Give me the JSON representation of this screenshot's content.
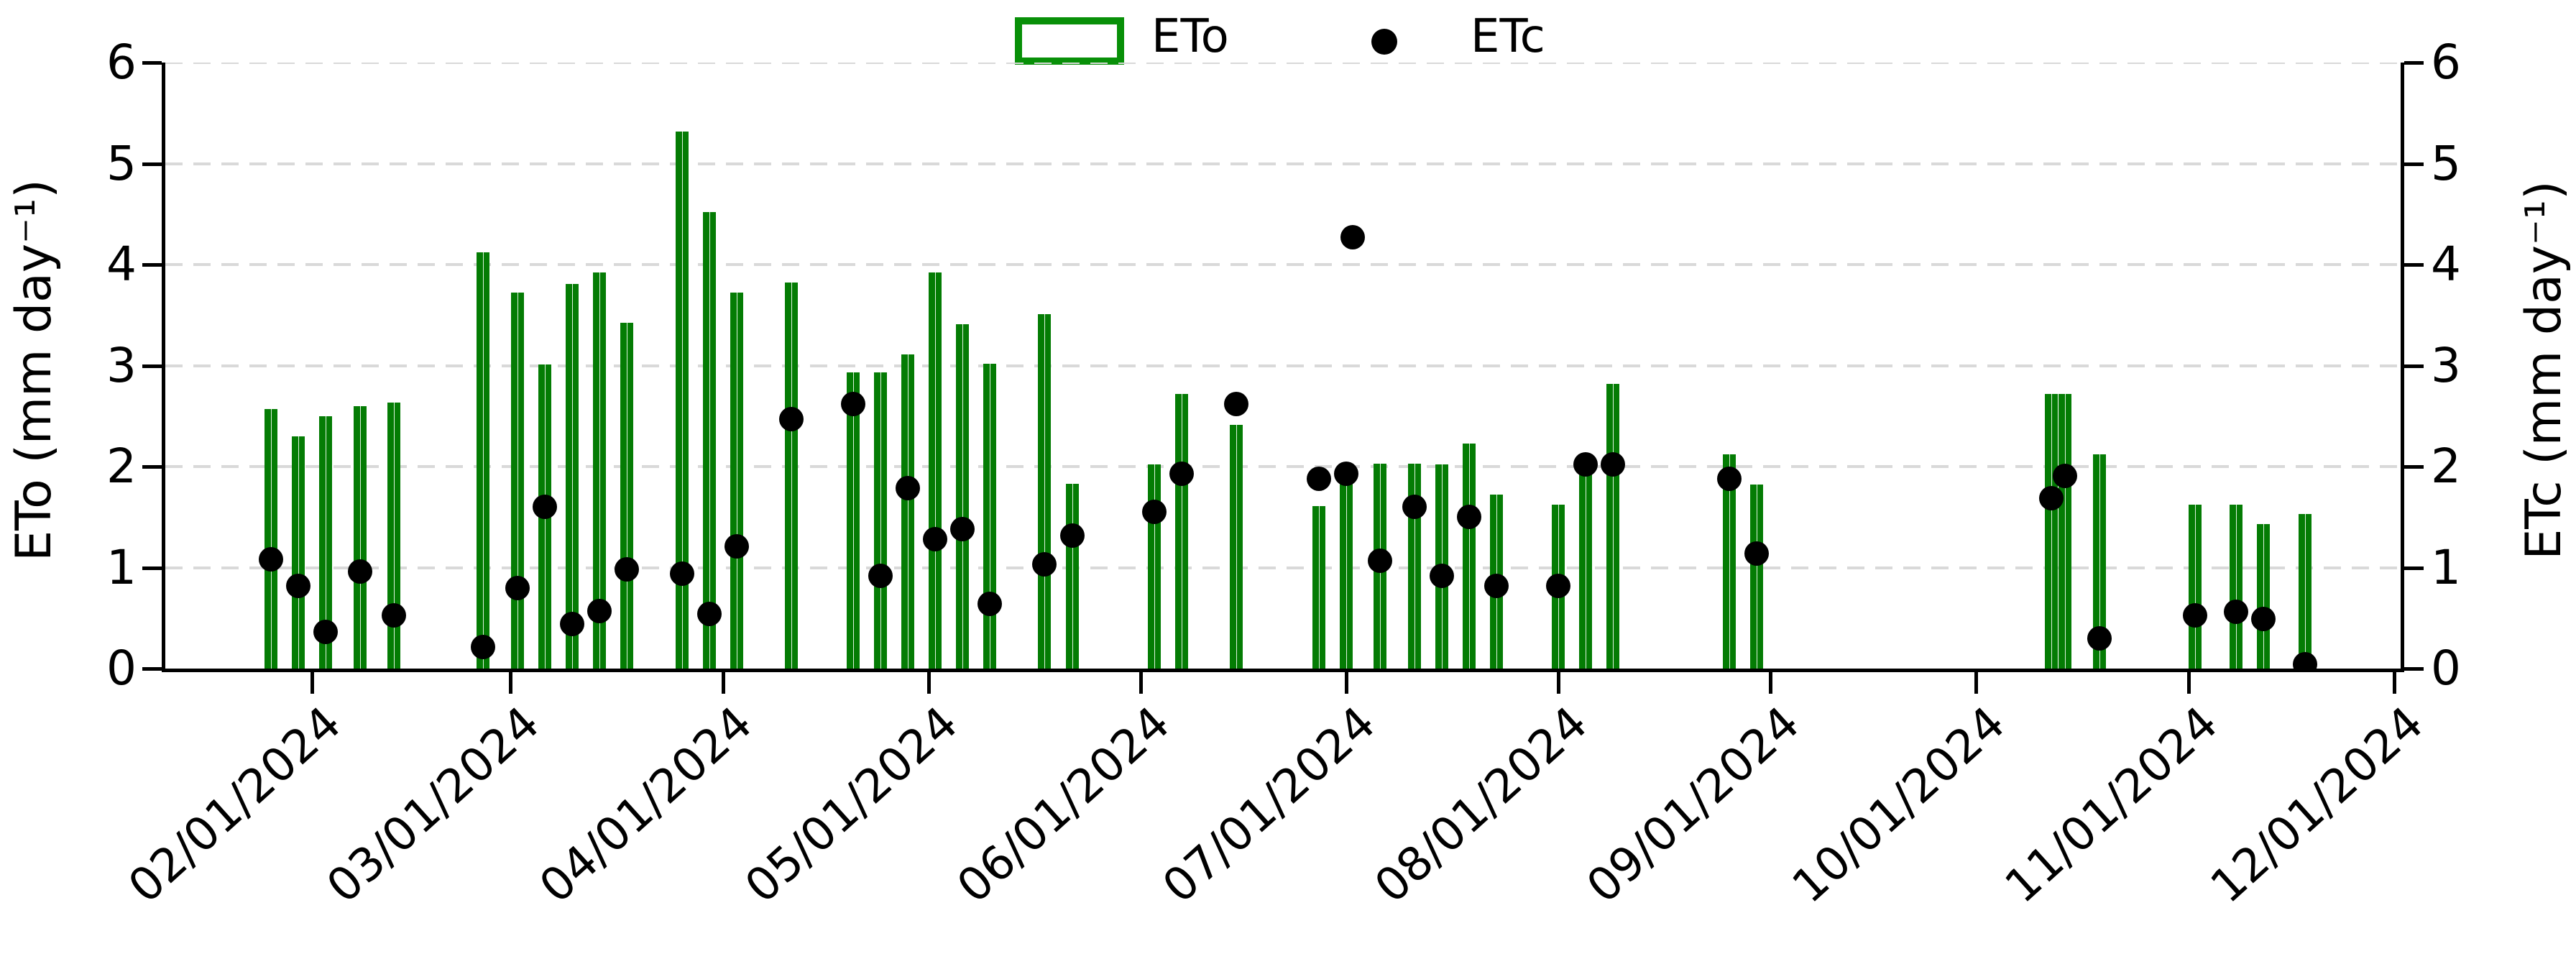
{
  "legend": {
    "eto_label": "ETo",
    "etc_label": "ETc"
  },
  "axes": {
    "left_label": "ETo (mm day⁻¹)",
    "right_label": "ETc (mm day⁻¹)",
    "y_tick_labels": [
      "0",
      "1",
      "2",
      "3",
      "4",
      "5",
      "6"
    ],
    "x_tick_labels": [
      "02/01/2024",
      "03/01/2024",
      "04/01/2024",
      "05/01/2024",
      "06/01/2024",
      "07/01/2024",
      "08/01/2024",
      "09/01/2024",
      "10/01/2024",
      "11/01/2024",
      "12/01/2024"
    ]
  },
  "colors": {
    "bar_green": "#047c04",
    "legend_border_green": "#089008",
    "dot_black": "#000000",
    "grid_gray": "#d9d9d9",
    "axis_black": "#000000"
  },
  "chart_data": {
    "type": "bar",
    "title": "",
    "xlabel": "",
    "grid": "horizontal dashed",
    "legend_position": "top center",
    "x_range": [
      "01/10/2024",
      "12/02/2024"
    ],
    "y_left": {
      "label": "ETo (mm day⁻¹)",
      "ticks": [
        0,
        1,
        2,
        3,
        4,
        5,
        6
      ],
      "range": [
        0,
        6
      ]
    },
    "y_right": {
      "label": "ETc (mm day⁻¹)",
      "ticks": [
        0,
        1,
        2,
        3,
        4,
        5,
        6
      ],
      "range": [
        0,
        6
      ]
    },
    "x_tick_dates": [
      "02/01/2024",
      "03/01/2024",
      "04/01/2024",
      "05/01/2024",
      "06/01/2024",
      "07/01/2024",
      "08/01/2024",
      "09/01/2024",
      "10/01/2024",
      "11/01/2024",
      "12/01/2024"
    ],
    "series": [
      {
        "name": "ETo",
        "type": "bar",
        "color": "#047c04",
        "points": [
          [
            "01/26/2024",
            2.57
          ],
          [
            "01/30/2024",
            2.3
          ],
          [
            "02/03/2024",
            2.5
          ],
          [
            "02/08/2024",
            2.6
          ],
          [
            "02/13/2024",
            2.63
          ],
          [
            "02/26/2024",
            4.12
          ],
          [
            "03/02/2024",
            3.72
          ],
          [
            "03/06/2024",
            3.01
          ],
          [
            "03/10/2024",
            3.81
          ],
          [
            "03/14/2024",
            3.92
          ],
          [
            "03/18/2024",
            3.42
          ],
          [
            "03/26/2024",
            5.32
          ],
          [
            "03/30/2024",
            4.52
          ],
          [
            "04/03/2024",
            3.72
          ],
          [
            "04/11/2024",
            3.82
          ],
          [
            "04/20/2024",
            2.93
          ],
          [
            "04/24/2024",
            2.93
          ],
          [
            "04/28/2024",
            3.11
          ],
          [
            "05/02/2024",
            3.92
          ],
          [
            "05/06/2024",
            3.41
          ],
          [
            "05/10/2024",
            3.02
          ],
          [
            "05/18/2024",
            3.51
          ],
          [
            "05/22/2024",
            1.83
          ],
          [
            "06/03/2024",
            2.02
          ],
          [
            "06/07/2024",
            2.72
          ],
          [
            "06/15/2024",
            2.41
          ],
          [
            "06/27/2024",
            1.61
          ],
          [
            "07/01/2024",
            2.03
          ],
          [
            "07/06/2024",
            2.03
          ],
          [
            "07/11/2024",
            2.03
          ],
          [
            "07/15/2024",
            2.02
          ],
          [
            "07/19/2024",
            2.23
          ],
          [
            "07/23/2024",
            1.72
          ],
          [
            "08/01/2024",
            1.62
          ],
          [
            "08/05/2024",
            2.03
          ],
          [
            "08/09/2024",
            2.82
          ],
          [
            "08/26/2024",
            2.12
          ],
          [
            "08/30/2024",
            1.82
          ],
          [
            "10/12/2024",
            2.72
          ],
          [
            "10/14/2024",
            2.72
          ],
          [
            "10/19/2024",
            2.12
          ],
          [
            "11/02/2024",
            1.62
          ],
          [
            "11/08/2024",
            1.62
          ],
          [
            "11/12/2024",
            1.43
          ],
          [
            "11/18/2024",
            1.53
          ]
        ]
      },
      {
        "name": "ETc",
        "type": "scatter",
        "color": "#000000",
        "points": [
          [
            "01/26/2024",
            1.08
          ],
          [
            "01/30/2024",
            0.82
          ],
          [
            "02/03/2024",
            0.36
          ],
          [
            "02/08/2024",
            0.96
          ],
          [
            "02/13/2024",
            0.53
          ],
          [
            "02/26/2024",
            0.21
          ],
          [
            "03/02/2024",
            0.8
          ],
          [
            "03/06/2024",
            1.6
          ],
          [
            "03/10/2024",
            0.44
          ],
          [
            "03/14/2024",
            0.57
          ],
          [
            "03/18/2024",
            0.98
          ],
          [
            "03/26/2024",
            0.94
          ],
          [
            "03/30/2024",
            0.54
          ],
          [
            "04/03/2024",
            1.21
          ],
          [
            "04/11/2024",
            2.47
          ],
          [
            "04/20/2024",
            2.62
          ],
          [
            "04/24/2024",
            0.92
          ],
          [
            "04/28/2024",
            1.79
          ],
          [
            "05/02/2024",
            1.28
          ],
          [
            "05/06/2024",
            1.38
          ],
          [
            "05/10/2024",
            0.64
          ],
          [
            "05/18/2024",
            1.03
          ],
          [
            "05/22/2024",
            1.32
          ],
          [
            "06/03/2024",
            1.55
          ],
          [
            "06/07/2024",
            1.93
          ],
          [
            "06/15/2024",
            2.62
          ],
          [
            "06/27/2024",
            1.88
          ],
          [
            "07/01/2024",
            1.93
          ],
          [
            "07/02/2024",
            4.27
          ],
          [
            "07/06/2024",
            1.07
          ],
          [
            "07/11/2024",
            1.6
          ],
          [
            "07/15/2024",
            0.92
          ],
          [
            "07/19/2024",
            1.5
          ],
          [
            "07/23/2024",
            0.82
          ],
          [
            "08/01/2024",
            0.82
          ],
          [
            "08/05/2024",
            2.02
          ],
          [
            "08/09/2024",
            2.02
          ],
          [
            "08/26/2024",
            1.88
          ],
          [
            "08/30/2024",
            1.14
          ],
          [
            "10/12/2024",
            1.69
          ],
          [
            "10/14/2024",
            1.91
          ],
          [
            "10/19/2024",
            0.3
          ],
          [
            "11/02/2024",
            0.53
          ],
          [
            "11/08/2024",
            0.56
          ],
          [
            "11/12/2024",
            0.49
          ],
          [
            "11/18/2024",
            0.04
          ]
        ]
      }
    ]
  }
}
